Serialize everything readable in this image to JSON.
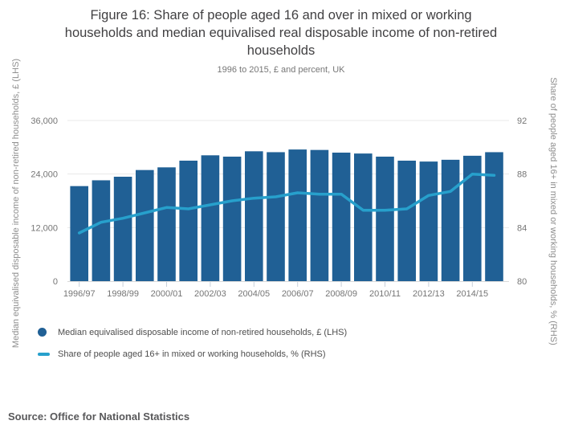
{
  "figure": {
    "title": "Figure 16: Share of people aged 16 and over in mixed or working households and median equivalised real disposable income of non-retired households",
    "title_lines": [
      "Figure 16: Share of people aged 16 and over in mixed or working",
      "households and median equivalised real disposable income of non-retired",
      "households"
    ],
    "subtitle": "1996 to 2015, £ and percent, UK",
    "source": "Source: Office for National Statistics"
  },
  "legend": {
    "items": [
      {
        "marker": "dot",
        "color": "#206095",
        "label": "Median equivalised disposable income of non-retired households, £ (LHS)"
      },
      {
        "marker": "line",
        "color": "#27A0CC",
        "label": "Share of people aged 16+ in mixed or working households, % (RHS)"
      }
    ]
  },
  "colors": {
    "bar": "#206095",
    "line": "#27A0CC",
    "grid": "#e8e8e8",
    "axis_line": "#d9d9d9",
    "tick_mark": "#c8d0da",
    "tick_text": "#757575",
    "title_text": "#414042",
    "axis_title_text": "#8e8e8e"
  },
  "chart_data": {
    "type": "combo",
    "subtypes": [
      "bar",
      "line"
    ],
    "title": "Figure 16: Share of people aged 16 and over in mixed or working households and median equivalised real disposable income of non-retired households",
    "subtitle": "1996 to 2015, £ and percent, UK",
    "categories": [
      "1996/97",
      "1997/98",
      "1998/99",
      "1999/00",
      "2000/01",
      "2001/02",
      "2002/03",
      "2003/04",
      "2004/05",
      "2005/06",
      "2006/07",
      "2007/08",
      "2008/09",
      "2009/10",
      "2010/11",
      "2011/12",
      "2012/13",
      "2013/14",
      "2014/15",
      "2015/16"
    ],
    "series": [
      {
        "name": "Median equivalised disposable income of non-retired households, £ (LHS)",
        "type": "bar",
        "axis": "left",
        "color": "#206095",
        "values": [
          21300,
          22600,
          23400,
          24900,
          25500,
          27000,
          28200,
          27900,
          29100,
          28900,
          29500,
          29400,
          28800,
          28600,
          27900,
          27000,
          26800,
          27200,
          28100,
          28900
        ]
      },
      {
        "name": "Share of people aged 16+ in mixed or working households, % (RHS)",
        "type": "line",
        "axis": "right",
        "color": "#27A0CC",
        "values": [
          83.6,
          84.4,
          84.7,
          85.1,
          85.5,
          85.4,
          85.7,
          86.0,
          86.2,
          86.3,
          86.6,
          86.5,
          86.5,
          85.3,
          85.3,
          85.4,
          86.4,
          86.7,
          88.0,
          87.9
        ]
      }
    ],
    "left_axis": {
      "title": "Median equivalised disposable income of non-retired households, £ (LHS)",
      "ticks": [
        0,
        12000,
        24000,
        36000
      ],
      "tick_labels": [
        "0",
        "12,000",
        "24,000",
        "36,000"
      ],
      "range": [
        0,
        36000
      ]
    },
    "right_axis": {
      "title": "Share of people aged 16+ in mixed or working households, % (RHS)",
      "ticks": [
        80,
        84,
        88,
        92
      ],
      "tick_labels": [
        "80",
        "84",
        "88",
        "92"
      ],
      "range": [
        80,
        92
      ]
    },
    "x_axis": {
      "tick_labels": [
        "1996/97",
        "1998/99",
        "2000/01",
        "2002/03",
        "2004/05",
        "2006/07",
        "2008/09",
        "2010/11",
        "2012/13",
        "2014/15"
      ],
      "labeled_category_step": 2
    },
    "grid": true,
    "legend_position": "bottom-left"
  }
}
